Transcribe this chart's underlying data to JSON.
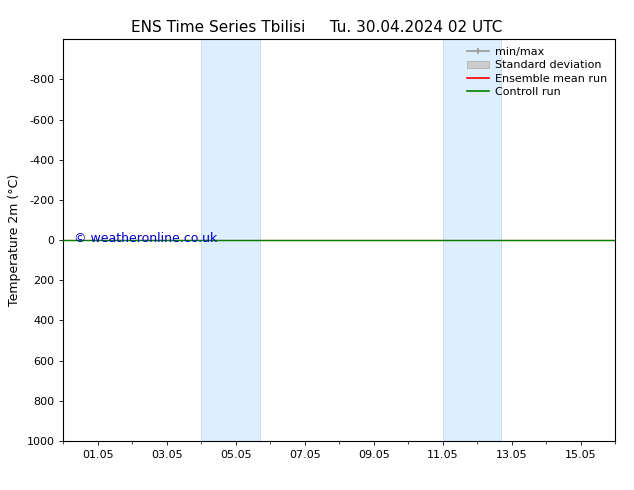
{
  "title": "ENS Time Series Tbilisi",
  "title_right": "Tu. 30.04.2024 02 UTC",
  "ylabel": "Temperature 2m (°C)",
  "watermark": "© weatheronline.co.uk",
  "xtick_labels": [
    "01.05",
    "03.05",
    "05.05",
    "07.05",
    "09.05",
    "11.05",
    "13.05",
    "15.05"
  ],
  "xtick_positions": [
    1,
    3,
    5,
    7,
    9,
    11,
    13,
    15
  ],
  "ylim": [
    -1000,
    1000
  ],
  "ytick_positions": [
    -800,
    -600,
    -400,
    -200,
    0,
    200,
    400,
    600,
    800,
    1000
  ],
  "ytick_labels": [
    "-800",
    "-600",
    "-400",
    "-200",
    "0",
    "200",
    "400",
    "600",
    "800",
    "1000"
  ],
  "shaded_bands": [
    {
      "x_start": 4.0,
      "x_end": 5.7
    },
    {
      "x_start": 11.0,
      "x_end": 12.7
    }
  ],
  "shaded_color": "#ddeeff",
  "shaded_edgecolor": "#b8d4ee",
  "line_y": 0,
  "control_run_color": "#008000",
  "ensemble_mean_color": "#ff0000",
  "minmax_color": "#999999",
  "stddev_color": "#cccccc",
  "background_color": "#ffffff",
  "title_fontsize": 11,
  "axis_label_fontsize": 9,
  "tick_fontsize": 8,
  "watermark_color": "#0000cc",
  "watermark_fontsize": 9,
  "legend_fontsize": 8,
  "xlim": [
    0,
    16
  ]
}
